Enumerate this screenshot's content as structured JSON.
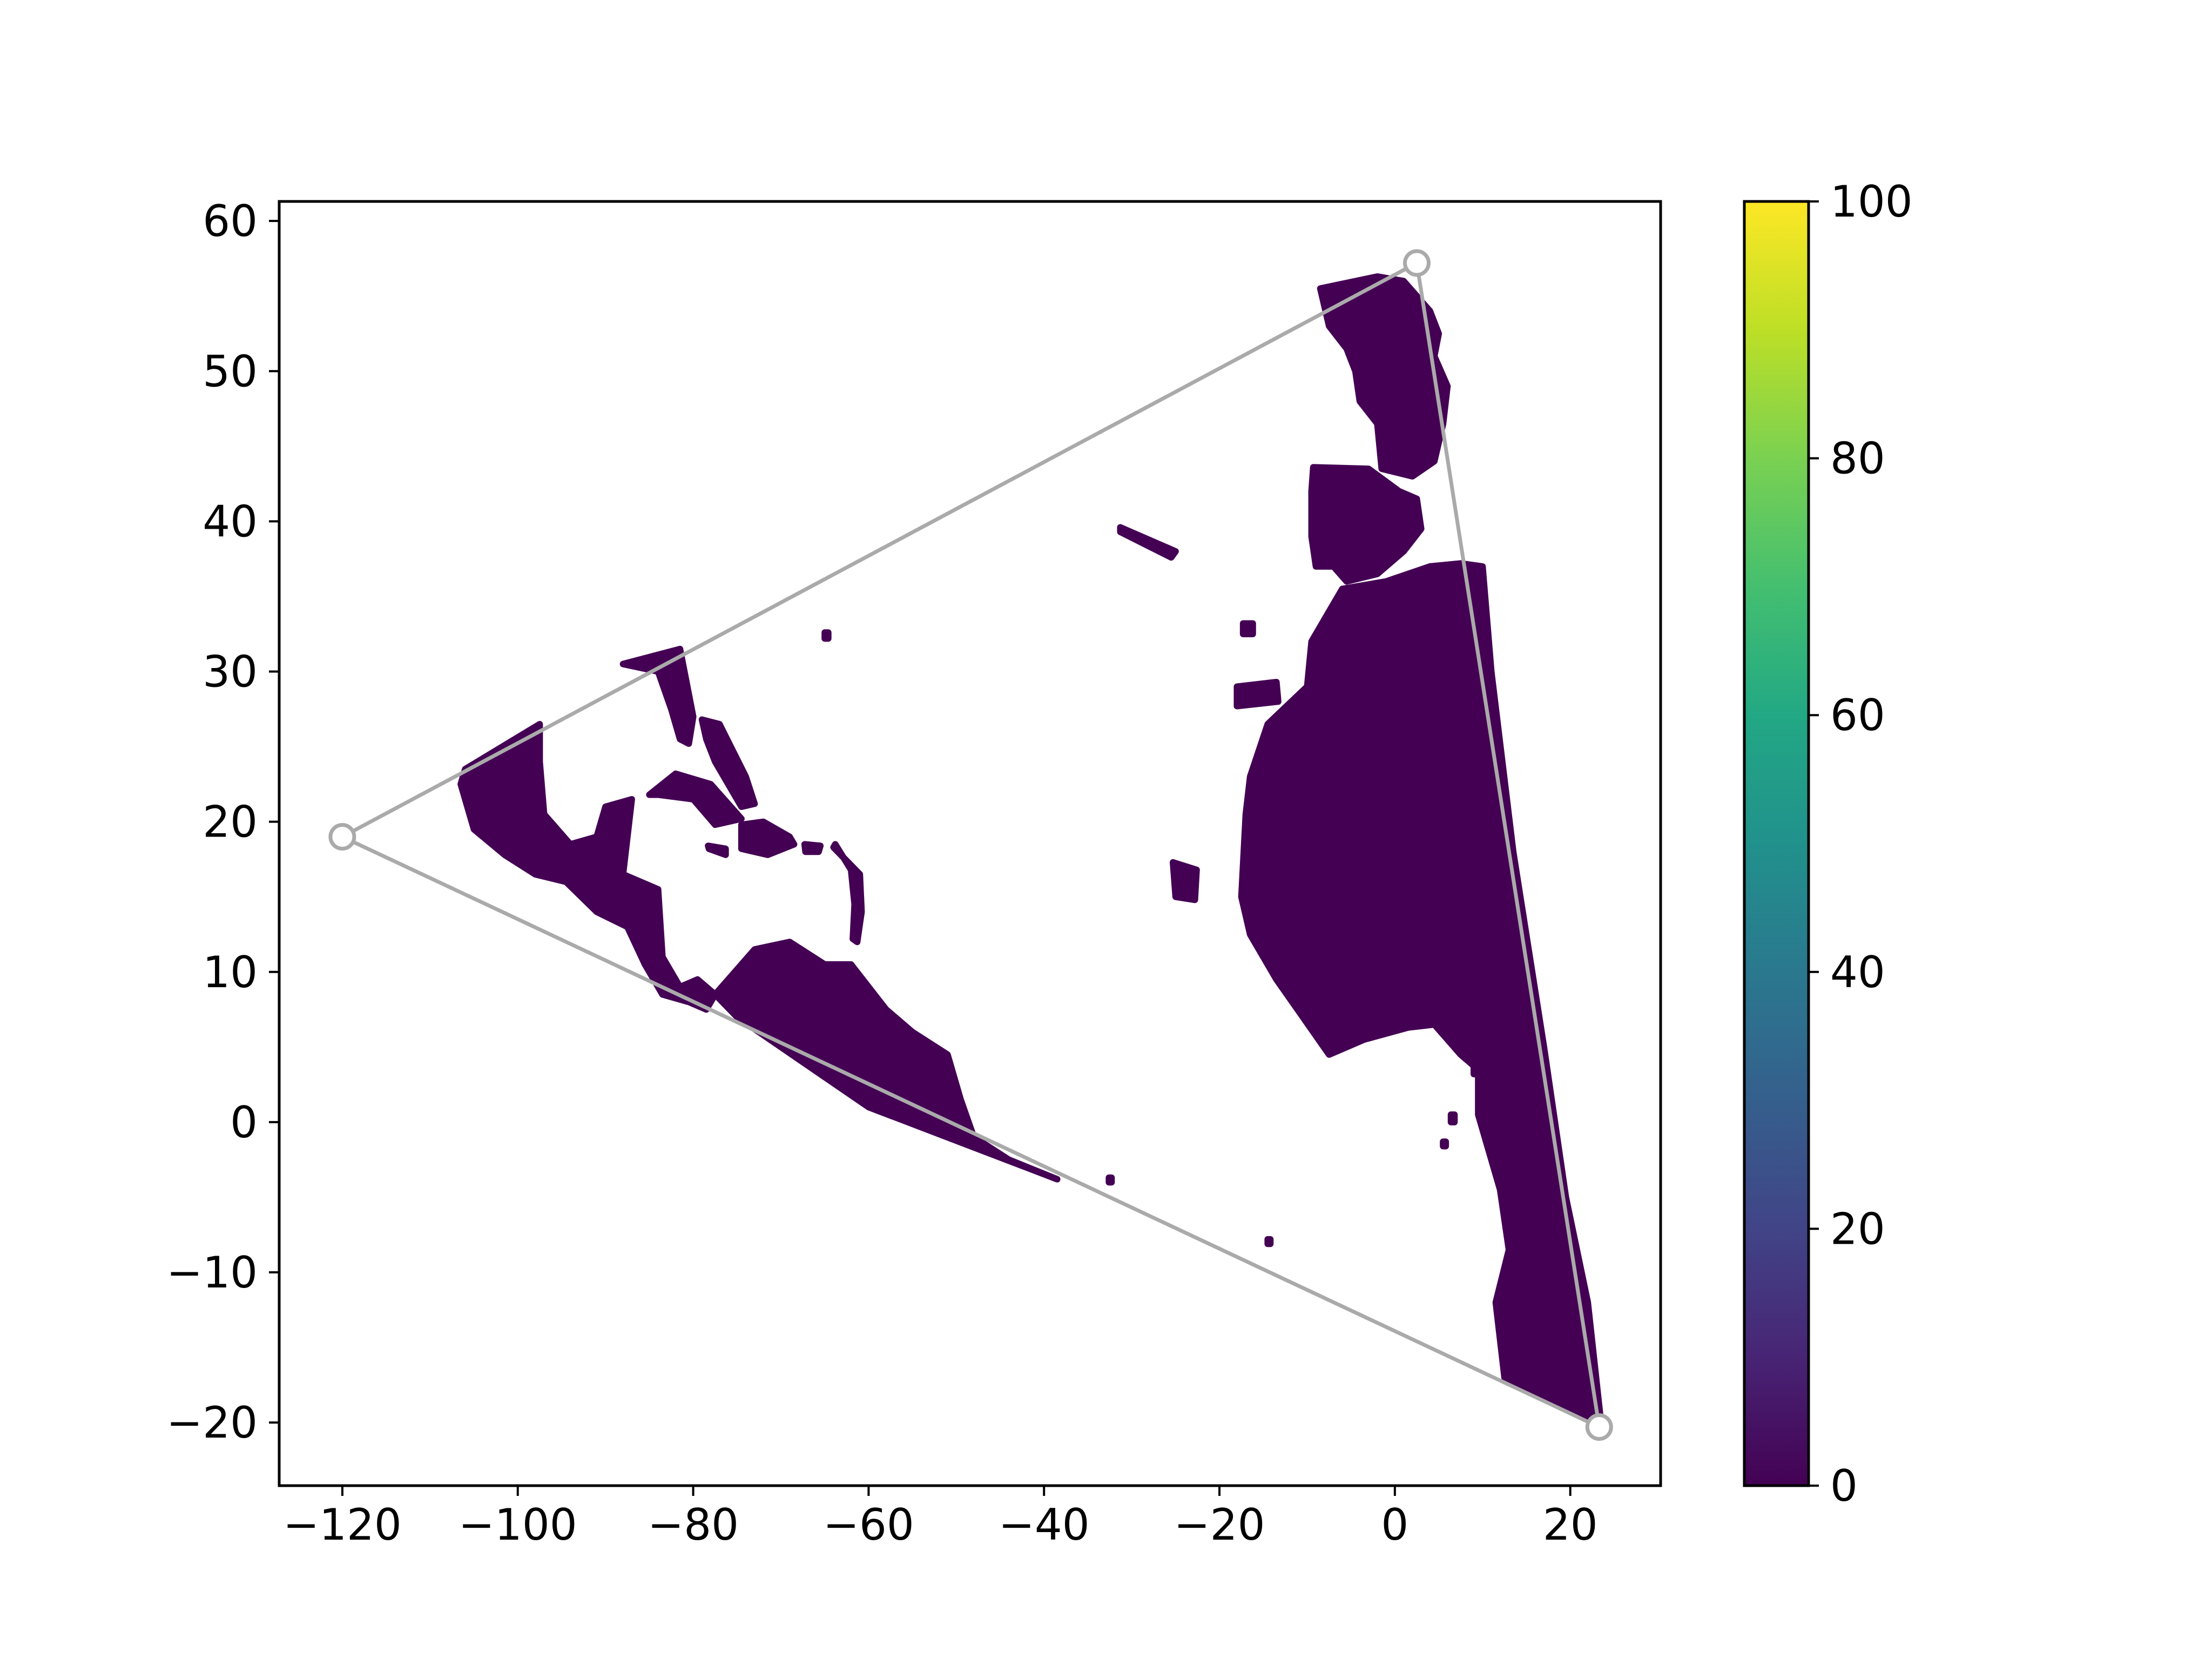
{
  "chart_data": {
    "type": "scatter",
    "title": "",
    "xlabel": "",
    "ylabel": "",
    "xlim": [
      -127.2,
      30.3
    ],
    "ylim": [
      -24.2,
      61.3
    ],
    "x_ticks": [
      -120,
      -100,
      -80,
      -60,
      -40,
      -20,
      0,
      20
    ],
    "y_ticks": [
      -20,
      -10,
      0,
      10,
      20,
      30,
      40,
      50,
      60
    ],
    "x_tick_labels": [
      "−120",
      "−100",
      "−80",
      "−60",
      "−40",
      "−20",
      "0",
      "20"
    ],
    "y_tick_labels": [
      "−20",
      "−10",
      "0",
      "10",
      "20",
      "30",
      "40",
      "50",
      "60"
    ],
    "grid": false,
    "legend": "none",
    "colormap": "viridis",
    "colorbar": {
      "range": [
        0,
        100
      ],
      "ticks": [
        0,
        20,
        40,
        60,
        80,
        100
      ],
      "tick_labels": [
        "0",
        "20",
        "40",
        "60",
        "80",
        "100"
      ]
    },
    "point_color": "#440154",
    "triangle": {
      "color": "#aaaaaa",
      "vertices": [
        {
          "x": -120.0,
          "y": 19.0
        },
        {
          "x": 2.5,
          "y": 57.2
        },
        {
          "x": 23.3,
          "y": -20.3
        }
      ]
    },
    "land_regions": [
      {
        "name": "Europe",
        "outline": [
          [
            -8.5,
            55.5
          ],
          [
            -2.0,
            56.3
          ],
          [
            1.0,
            56.0
          ],
          [
            4.0,
            54.0
          ],
          [
            5.0,
            52.5
          ],
          [
            4.5,
            51.0
          ],
          [
            6.0,
            49.0
          ],
          [
            5.5,
            46.5
          ],
          [
            4.5,
            44.0
          ],
          [
            2.0,
            43.0
          ],
          [
            -1.5,
            43.5
          ],
          [
            -2.0,
            46.5
          ],
          [
            -4.0,
            48.0
          ],
          [
            -4.5,
            50.0
          ],
          [
            -5.5,
            51.5
          ],
          [
            -7.5,
            53.0
          ]
        ]
      },
      {
        "name": "Iberia",
        "outline": [
          [
            -9.3,
            43.6
          ],
          [
            -3.0,
            43.5
          ],
          [
            0.5,
            42.0
          ],
          [
            2.5,
            41.5
          ],
          [
            3.0,
            39.5
          ],
          [
            1.0,
            38.0
          ],
          [
            -2.0,
            36.5
          ],
          [
            -5.5,
            36.0
          ],
          [
            -7.0,
            37.0
          ],
          [
            -9.0,
            37.0
          ],
          [
            -9.5,
            39.0
          ],
          [
            -9.5,
            42.0
          ]
        ]
      },
      {
        "name": "Africa",
        "outline": [
          [
            -6.0,
            35.5
          ],
          [
            -1.0,
            36.0
          ],
          [
            4.0,
            37.0
          ],
          [
            7.5,
            37.2
          ],
          [
            10.0,
            37.0
          ],
          [
            11.0,
            30.0
          ],
          [
            13.5,
            18.0
          ],
          [
            17.0,
            5.0
          ],
          [
            19.5,
            -5.0
          ],
          [
            22.0,
            -12.0
          ],
          [
            23.5,
            -20.0
          ],
          [
            12.5,
            -17.0
          ],
          [
            11.5,
            -12.0
          ],
          [
            13.0,
            -8.5
          ],
          [
            12.0,
            -4.5
          ],
          [
            9.5,
            0.5
          ],
          [
            9.5,
            3.5
          ],
          [
            7.5,
            4.5
          ],
          [
            4.5,
            6.5
          ],
          [
            1.5,
            6.3
          ],
          [
            -3.5,
            5.5
          ],
          [
            -7.5,
            4.5
          ],
          [
            -10.5,
            7.0
          ],
          [
            -13.5,
            9.5
          ],
          [
            -16.5,
            12.5
          ],
          [
            -17.5,
            15.0
          ],
          [
            -17.0,
            20.5
          ],
          [
            -16.5,
            23.0
          ],
          [
            -14.5,
            26.5
          ],
          [
            -10.0,
            29.0
          ],
          [
            -9.5,
            32.0
          ]
        ]
      },
      {
        "name": "North America",
        "outline": [
          [
            -106.0,
            23.5
          ],
          [
            -97.5,
            26.5
          ],
          [
            -97.5,
            24.0
          ],
          [
            -97.0,
            20.5
          ],
          [
            -94.0,
            18.5
          ],
          [
            -91.0,
            19.0
          ],
          [
            -90.0,
            21.0
          ],
          [
            -87.0,
            21.5
          ],
          [
            -88.0,
            16.5
          ],
          [
            -84.0,
            15.5
          ],
          [
            -83.5,
            11.0
          ],
          [
            -81.5,
            9.0
          ],
          [
            -79.5,
            9.5
          ],
          [
            -77.5,
            8.5
          ],
          [
            -78.5,
            7.5
          ],
          [
            -80.5,
            8.0
          ],
          [
            -83.5,
            8.5
          ],
          [
            -85.5,
            10.5
          ],
          [
            -87.5,
            13.0
          ],
          [
            -91.0,
            14.0
          ],
          [
            -94.5,
            16.0
          ],
          [
            -98.0,
            16.5
          ],
          [
            -101.5,
            17.8
          ],
          [
            -105.0,
            19.5
          ],
          [
            -106.5,
            22.5
          ]
        ]
      },
      {
        "name": "Florida",
        "outline": [
          [
            -88.0,
            30.5
          ],
          [
            -81.5,
            31.5
          ],
          [
            -80.0,
            27.0
          ],
          [
            -80.5,
            25.2
          ],
          [
            -81.5,
            25.5
          ],
          [
            -82.5,
            27.5
          ],
          [
            -84.0,
            30.0
          ]
        ]
      },
      {
        "name": "South America",
        "outline": [
          [
            -77.5,
            8.5
          ],
          [
            -76.0,
            9.5
          ],
          [
            -73.0,
            11.5
          ],
          [
            -69.0,
            12.0
          ],
          [
            -65.0,
            10.5
          ],
          [
            -62.0,
            10.5
          ],
          [
            -58.0,
            7.5
          ],
          [
            -55.0,
            6.0
          ],
          [
            -51.0,
            4.5
          ],
          [
            -49.5,
            1.5
          ],
          [
            -48.0,
            -1.0
          ],
          [
            -44.0,
            -2.5
          ],
          [
            -38.5,
            -3.8
          ],
          [
            -60.0,
            1.0
          ],
          [
            -75.0,
            7.0
          ]
        ]
      },
      {
        "name": "Cuba",
        "outline": [
          [
            -85.0,
            21.8
          ],
          [
            -82.0,
            23.2
          ],
          [
            -78.0,
            22.5
          ],
          [
            -74.5,
            20.2
          ],
          [
            -77.5,
            19.8
          ],
          [
            -80.0,
            21.5
          ],
          [
            -84.0,
            21.8
          ]
        ]
      },
      {
        "name": "Hispaniola",
        "outline": [
          [
            -74.5,
            19.8
          ],
          [
            -72.0,
            20.0
          ],
          [
            -69.0,
            19.0
          ],
          [
            -68.5,
            18.5
          ],
          [
            -71.5,
            17.8
          ],
          [
            -74.5,
            18.2
          ]
        ]
      },
      {
        "name": "Puerto Rico",
        "outline": [
          [
            -67.3,
            18.5
          ],
          [
            -65.5,
            18.4
          ],
          [
            -65.7,
            18.0
          ],
          [
            -67.2,
            18.0
          ]
        ]
      },
      {
        "name": "Jamaica",
        "outline": [
          [
            -78.3,
            18.4
          ],
          [
            -76.3,
            18.2
          ],
          [
            -76.3,
            17.8
          ],
          [
            -78.2,
            18.2
          ]
        ]
      },
      {
        "name": "Bahamas",
        "outline": [
          [
            -79.0,
            26.8
          ],
          [
            -77.0,
            26.5
          ],
          [
            -74.0,
            23.0
          ],
          [
            -73.0,
            21.2
          ],
          [
            -74.5,
            21.0
          ],
          [
            -77.5,
            24.0
          ],
          [
            -78.5,
            25.5
          ]
        ]
      },
      {
        "name": "Lesser Antilles",
        "outline": [
          [
            -64.0,
            18.3
          ],
          [
            -61.0,
            16.5
          ],
          [
            -60.8,
            14.0
          ],
          [
            -61.3,
            12.0
          ],
          [
            -61.8,
            12.2
          ],
          [
            -61.6,
            14.5
          ],
          [
            -62.0,
            16.8
          ],
          [
            -63.8,
            18.5
          ]
        ]
      },
      {
        "name": "Canary Islands",
        "outline": [
          [
            -18.0,
            29.0
          ],
          [
            -13.5,
            29.3
          ],
          [
            -13.3,
            28.0
          ],
          [
            -18.0,
            27.7
          ]
        ]
      },
      {
        "name": "Cape Verde",
        "outline": [
          [
            -25.3,
            17.3
          ],
          [
            -22.6,
            16.8
          ],
          [
            -22.8,
            14.8
          ],
          [
            -25.0,
            15.0
          ]
        ]
      },
      {
        "name": "Azores",
        "outline": [
          [
            -31.3,
            39.6
          ],
          [
            -25.0,
            38.0
          ],
          [
            -25.5,
            37.6
          ],
          [
            -31.3,
            39.3
          ]
        ]
      },
      {
        "name": "Madeira",
        "outline": [
          [
            -17.3,
            33.2
          ],
          [
            -16.2,
            33.2
          ],
          [
            -16.2,
            32.5
          ],
          [
            -17.3,
            32.5
          ]
        ]
      },
      {
        "name": "Bermuda",
        "outline": [
          [
            -65.0,
            32.6
          ],
          [
            -64.6,
            32.6
          ],
          [
            -64.6,
            32.2
          ],
          [
            -65.0,
            32.2
          ]
        ]
      },
      {
        "name": "Bioko",
        "outline": [
          [
            9.0,
            3.9
          ],
          [
            9.4,
            3.9
          ],
          [
            9.4,
            3.2
          ],
          [
            9.0,
            3.2
          ]
        ]
      },
      {
        "name": "Sao Tome",
        "outline": [
          [
            6.4,
            0.5
          ],
          [
            6.8,
            0.5
          ],
          [
            6.8,
            0.0
          ],
          [
            6.4,
            0.0
          ]
        ]
      },
      {
        "name": "Annobon",
        "outline": [
          [
            5.5,
            -1.3
          ],
          [
            5.8,
            -1.3
          ],
          [
            5.8,
            -1.6
          ],
          [
            5.5,
            -1.6
          ]
        ]
      },
      {
        "name": "Fernando de Noronha",
        "outline": [
          [
            -32.6,
            -3.7
          ],
          [
            -32.3,
            -3.7
          ],
          [
            -32.3,
            -4.0
          ],
          [
            -32.6,
            -4.0
          ]
        ]
      },
      {
        "name": "Ascension",
        "outline": [
          [
            -14.5,
            -7.8
          ],
          [
            -14.2,
            -7.8
          ],
          [
            -14.2,
            -8.1
          ],
          [
            -14.5,
            -8.1
          ]
        ]
      }
    ]
  }
}
